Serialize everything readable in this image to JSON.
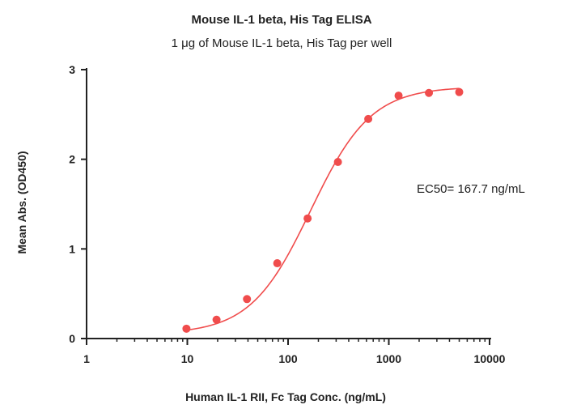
{
  "chart_data": {
    "type": "scatter",
    "title": "Mouse IL-1 beta, His Tag ELISA",
    "subtitle": "1 μg of Mouse IL-1 beta, His Tag per well",
    "xlabel": "Human IL-1 RII, Fc Tag Conc. (ng/mL)",
    "ylabel": "Mean Abs. (OD450)",
    "xscale": "log",
    "xlim": [
      1,
      10000
    ],
    "ylim": [
      0,
      3
    ],
    "x_ticks": [
      1,
      10,
      100,
      1000,
      10000
    ],
    "x_tick_labels": [
      "1",
      "10",
      "100",
      "1000",
      "10000"
    ],
    "y_ticks": [
      0,
      1,
      2,
      3
    ],
    "y_tick_labels": [
      "0",
      "1",
      "2",
      "3"
    ],
    "grid": false,
    "annotation": "EC50= 167.7 ng/mL",
    "series": [
      {
        "x": [
          9.8,
          19.5,
          39.1,
          78.1,
          156.3,
          312.5,
          625,
          1250,
          2500,
          5000
        ],
        "y": [
          0.11,
          0.21,
          0.44,
          0.84,
          1.34,
          1.97,
          2.45,
          2.71,
          2.74,
          2.75
        ],
        "color": "#f04c4c"
      }
    ],
    "fit": {
      "type": "4PL",
      "bottom": 0.05,
      "top": 2.81,
      "ec50": 167.7,
      "hill": 1.45,
      "color": "#f04c4c"
    }
  }
}
